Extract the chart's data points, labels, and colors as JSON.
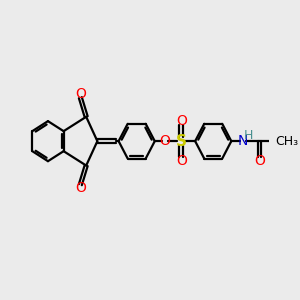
{
  "background_color": "#ebebeb",
  "bond_color": "#000000",
  "oxygen_color": "#ff0000",
  "nitrogen_color": "#0000cc",
  "sulfur_color": "#cccc00",
  "hydrogen_color": "#4a9090",
  "line_width": 1.6,
  "font_size_atoms": 10,
  "fig_width": 3.0,
  "fig_height": 3.0,
  "xlim": [
    0,
    10
  ],
  "ylim": [
    0,
    10
  ]
}
